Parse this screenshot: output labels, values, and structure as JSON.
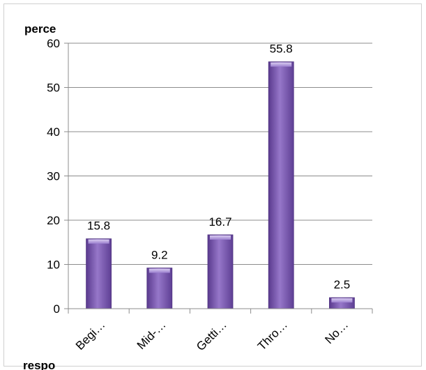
{
  "chart_data": {
    "type": "bar",
    "ylabel": "perce",
    "xlabel": "respo",
    "categories": [
      "Begi…",
      "Mid-…",
      "Getti…",
      "Thro…",
      "No…"
    ],
    "values": [
      15.8,
      9.2,
      16.7,
      55.8,
      2.5
    ],
    "data_labels": [
      "15.8",
      "9.2",
      "16.7",
      "55.8",
      "2.5"
    ],
    "yticks": [
      0,
      10,
      20,
      30,
      40,
      50,
      60
    ],
    "ylim": [
      0,
      60
    ],
    "grid": true,
    "legend": "none",
    "colors": {
      "bar": "#7d5bb0",
      "bar_light": "#b39ddb",
      "bar_dark": "#4f3380",
      "grid": "#8c8c8c",
      "axis": "#8c8c8c"
    }
  }
}
